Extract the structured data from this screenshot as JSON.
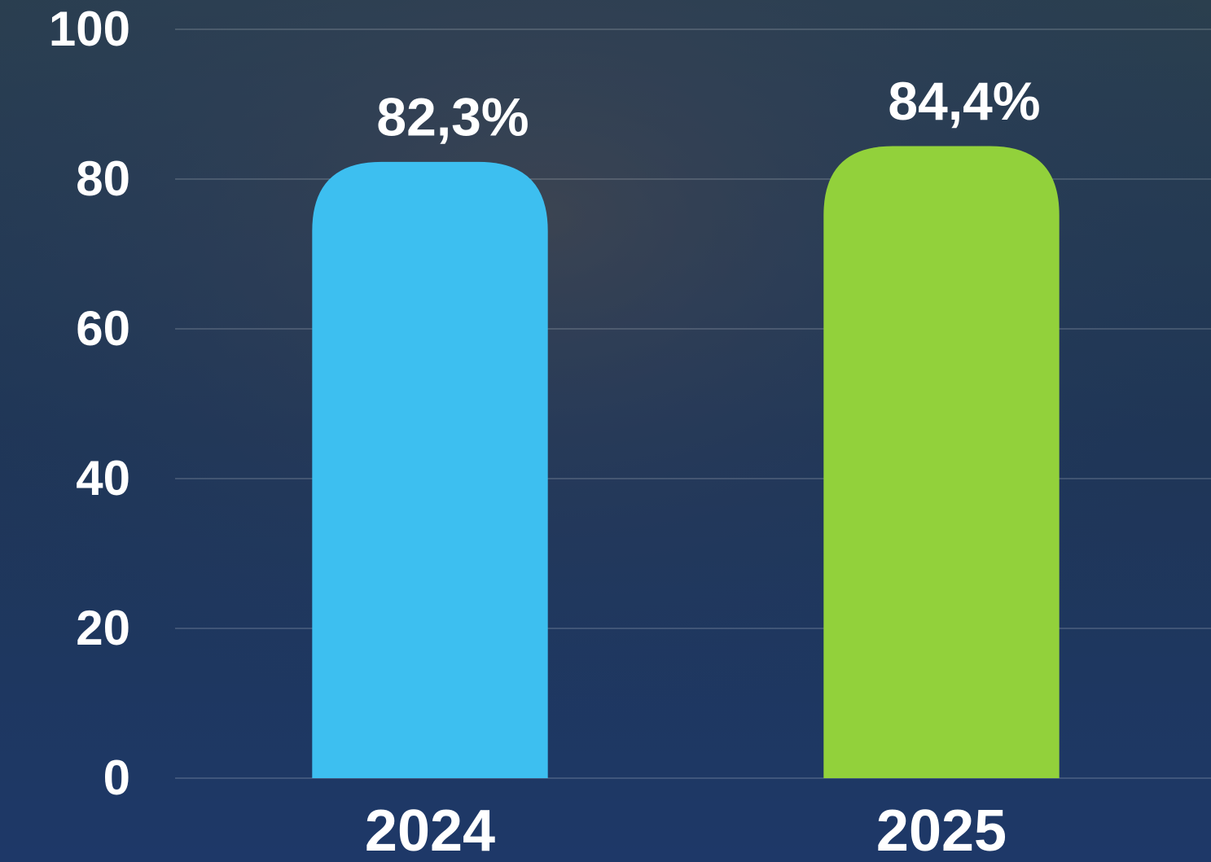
{
  "chart_data": {
    "type": "bar",
    "categories": [
      "2024",
      "2025"
    ],
    "values": [
      82.3,
      84.4
    ],
    "value_labels": [
      "82,3%",
      "84,4%"
    ],
    "colors": [
      "#3dbff0",
      "#92d13b"
    ],
    "ylim": [
      0,
      100
    ],
    "yticks": [
      0,
      20,
      40,
      60,
      80,
      100
    ],
    "grid": true
  }
}
